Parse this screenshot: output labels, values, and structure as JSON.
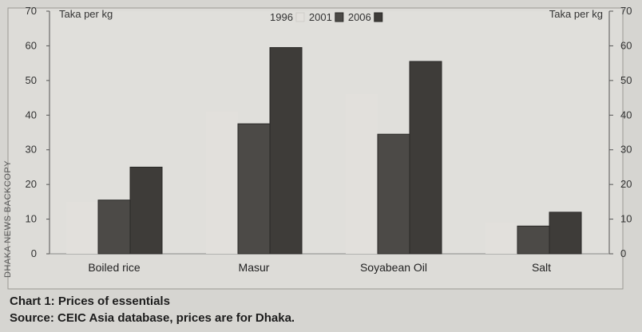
{
  "chart_data": {
    "type": "bar",
    "title": "Chart 1: Prices of essentials",
    "source": "Source: CEIC Asia database, prices are for Dhaka.",
    "ylabel_left": "Taka per kg",
    "ylabel_right": "Taka per kg",
    "ylim": [
      0,
      70
    ],
    "yticks": [
      "0",
      "10",
      "20",
      "30",
      "40",
      "50",
      "60",
      "70"
    ],
    "categories": [
      "Boiled rice",
      "Masur",
      "Soyabean Oil",
      "Salt"
    ],
    "series": [
      {
        "name": "1996",
        "values": [
          15,
          41,
          46,
          9
        ],
        "color": "#e2e0dc"
      },
      {
        "name": "2001",
        "values": [
          15.5,
          37.5,
          34.5,
          8
        ],
        "color": "#4c4a47"
      },
      {
        "name": "2006",
        "values": [
          25,
          59.5,
          55.5,
          12
        ],
        "color": "#3e3c39"
      }
    ],
    "legend_position": "top",
    "grid": false
  },
  "side_text": "DHAKA NEWS BACKCOPY"
}
